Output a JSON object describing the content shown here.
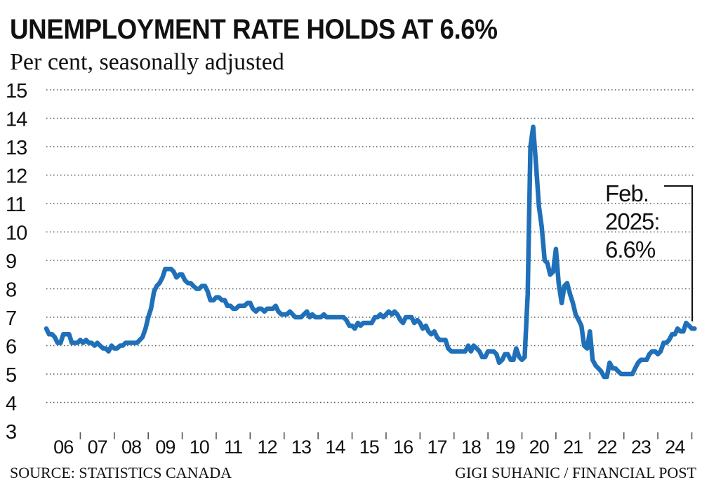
{
  "title": "UNEMPLOYMENT RATE HOLDS AT 6.6%",
  "subtitle": "Per cent, seasonally adjusted",
  "source": "SOURCE: STATISTICS CANADA",
  "credit": "GIGI SUHANIC / FINANCIAL POST",
  "annotation": {
    "line1": "Feb.",
    "line2": "2025:",
    "line3": "6.6%"
  },
  "colors": {
    "line": "#1f70b8",
    "grid": "#555555",
    "text": "#111111"
  },
  "chart_data": {
    "type": "line",
    "title": "UNEMPLOYMENT RATE HOLDS AT 6.6%",
    "subtitle": "Per cent, seasonally adjusted",
    "ylim": [
      3,
      15
    ],
    "yticks": [
      3,
      4,
      5,
      6,
      7,
      8,
      9,
      10,
      11,
      12,
      13,
      14,
      15
    ],
    "xlim": [
      2006.0,
      2025.3
    ],
    "xtick_labels": [
      "06",
      "07",
      "08",
      "09",
      "10",
      "11",
      "12",
      "13",
      "14",
      "15",
      "16",
      "17",
      "18",
      "19",
      "20",
      "21",
      "22",
      "23",
      "24"
    ],
    "grid": "horizontal dotted",
    "annotation": "Feb. 2025: 6.6%",
    "series": [
      {
        "values": [
          [
            2006.0,
            6.6
          ],
          [
            2006.08,
            6.4
          ],
          [
            2006.17,
            6.4
          ],
          [
            2006.25,
            6.3
          ],
          [
            2006.33,
            6.1
          ],
          [
            2006.42,
            6.1
          ],
          [
            2006.5,
            6.4
          ],
          [
            2006.58,
            6.4
          ],
          [
            2006.67,
            6.4
          ],
          [
            2006.75,
            6.1
          ],
          [
            2006.83,
            6.1
          ],
          [
            2006.92,
            6.1
          ],
          [
            2007.0,
            6.2
          ],
          [
            2007.08,
            6.1
          ],
          [
            2007.17,
            6.2
          ],
          [
            2007.25,
            6.1
          ],
          [
            2007.33,
            6.1
          ],
          [
            2007.42,
            6.0
          ],
          [
            2007.5,
            6.1
          ],
          [
            2007.58,
            6.0
          ],
          [
            2007.67,
            5.9
          ],
          [
            2007.75,
            5.9
          ],
          [
            2007.83,
            5.8
          ],
          [
            2007.92,
            6.0
          ],
          [
            2008.0,
            5.9
          ],
          [
            2008.08,
            5.9
          ],
          [
            2008.17,
            6.0
          ],
          [
            2008.25,
            6.0
          ],
          [
            2008.33,
            6.1
          ],
          [
            2008.42,
            6.1
          ],
          [
            2008.5,
            6.1
          ],
          [
            2008.58,
            6.1
          ],
          [
            2008.67,
            6.1
          ],
          [
            2008.75,
            6.2
          ],
          [
            2008.83,
            6.3
          ],
          [
            2008.92,
            6.6
          ],
          [
            2009.0,
            7.0
          ],
          [
            2009.08,
            7.3
          ],
          [
            2009.17,
            7.9
          ],
          [
            2009.25,
            8.1
          ],
          [
            2009.33,
            8.2
          ],
          [
            2009.42,
            8.4
          ],
          [
            2009.5,
            8.7
          ],
          [
            2009.58,
            8.7
          ],
          [
            2009.67,
            8.7
          ],
          [
            2009.75,
            8.6
          ],
          [
            2009.83,
            8.4
          ],
          [
            2009.92,
            8.5
          ],
          [
            2010.0,
            8.5
          ],
          [
            2010.08,
            8.3
          ],
          [
            2010.17,
            8.2
          ],
          [
            2010.25,
            8.2
          ],
          [
            2010.33,
            8.1
          ],
          [
            2010.42,
            8.0
          ],
          [
            2010.5,
            8.0
          ],
          [
            2010.58,
            8.1
          ],
          [
            2010.67,
            8.1
          ],
          [
            2010.75,
            7.9
          ],
          [
            2010.83,
            7.6
          ],
          [
            2010.92,
            7.6
          ],
          [
            2011.0,
            7.7
          ],
          [
            2011.08,
            7.7
          ],
          [
            2011.17,
            7.6
          ],
          [
            2011.25,
            7.6
          ],
          [
            2011.33,
            7.4
          ],
          [
            2011.42,
            7.4
          ],
          [
            2011.5,
            7.3
          ],
          [
            2011.58,
            7.3
          ],
          [
            2011.67,
            7.4
          ],
          [
            2011.75,
            7.4
          ],
          [
            2011.83,
            7.4
          ],
          [
            2011.92,
            7.5
          ],
          [
            2012.0,
            7.5
          ],
          [
            2012.08,
            7.3
          ],
          [
            2012.17,
            7.2
          ],
          [
            2012.25,
            7.3
          ],
          [
            2012.33,
            7.3
          ],
          [
            2012.42,
            7.2
          ],
          [
            2012.5,
            7.3
          ],
          [
            2012.58,
            7.3
          ],
          [
            2012.67,
            7.3
          ],
          [
            2012.75,
            7.4
          ],
          [
            2012.83,
            7.2
          ],
          [
            2012.92,
            7.1
          ],
          [
            2013.0,
            7.1
          ],
          [
            2013.08,
            7.1
          ],
          [
            2013.17,
            7.2
          ],
          [
            2013.25,
            7.1
          ],
          [
            2013.33,
            7.0
          ],
          [
            2013.42,
            7.0
          ],
          [
            2013.5,
            7.0
          ],
          [
            2013.58,
            7.1
          ],
          [
            2013.67,
            7.2
          ],
          [
            2013.75,
            7.0
          ],
          [
            2013.83,
            7.1
          ],
          [
            2013.92,
            7.0
          ],
          [
            2014.0,
            7.0
          ],
          [
            2014.08,
            7.0
          ],
          [
            2014.17,
            7.1
          ],
          [
            2014.25,
            7.0
          ],
          [
            2014.33,
            7.0
          ],
          [
            2014.42,
            7.0
          ],
          [
            2014.5,
            7.0
          ],
          [
            2014.58,
            7.0
          ],
          [
            2014.67,
            7.0
          ],
          [
            2014.75,
            7.0
          ],
          [
            2014.83,
            6.9
          ],
          [
            2014.92,
            6.7
          ],
          [
            2015.0,
            6.7
          ],
          [
            2015.08,
            6.6
          ],
          [
            2015.17,
            6.8
          ],
          [
            2015.25,
            6.7
          ],
          [
            2015.33,
            6.8
          ],
          [
            2015.42,
            6.8
          ],
          [
            2015.5,
            6.8
          ],
          [
            2015.58,
            6.8
          ],
          [
            2015.67,
            7.0
          ],
          [
            2015.75,
            7.0
          ],
          [
            2015.83,
            7.1
          ],
          [
            2015.92,
            7.0
          ],
          [
            2016.0,
            7.1
          ],
          [
            2016.08,
            7.2
          ],
          [
            2016.17,
            7.1
          ],
          [
            2016.25,
            7.2
          ],
          [
            2016.33,
            7.1
          ],
          [
            2016.42,
            6.9
          ],
          [
            2016.5,
            6.8
          ],
          [
            2016.58,
            7.0
          ],
          [
            2016.67,
            7.0
          ],
          [
            2016.75,
            7.0
          ],
          [
            2016.83,
            6.8
          ],
          [
            2016.92,
            6.9
          ],
          [
            2017.0,
            6.8
          ],
          [
            2017.08,
            6.6
          ],
          [
            2017.17,
            6.7
          ],
          [
            2017.25,
            6.5
          ],
          [
            2017.33,
            6.4
          ],
          [
            2017.42,
            6.5
          ],
          [
            2017.5,
            6.3
          ],
          [
            2017.58,
            6.2
          ],
          [
            2017.67,
            6.2
          ],
          [
            2017.75,
            6.2
          ],
          [
            2017.83,
            5.9
          ],
          [
            2017.92,
            5.8
          ],
          [
            2018.0,
            5.8
          ],
          [
            2018.08,
            5.8
          ],
          [
            2018.17,
            5.8
          ],
          [
            2018.25,
            5.8
          ],
          [
            2018.33,
            5.8
          ],
          [
            2018.42,
            6.0
          ],
          [
            2018.5,
            5.8
          ],
          [
            2018.58,
            6.0
          ],
          [
            2018.67,
            5.9
          ],
          [
            2018.75,
            5.8
          ],
          [
            2018.83,
            5.6
          ],
          [
            2018.92,
            5.6
          ],
          [
            2019.0,
            5.8
          ],
          [
            2019.08,
            5.8
          ],
          [
            2019.17,
            5.8
          ],
          [
            2019.25,
            5.7
          ],
          [
            2019.33,
            5.4
          ],
          [
            2019.42,
            5.5
          ],
          [
            2019.5,
            5.7
          ],
          [
            2019.58,
            5.7
          ],
          [
            2019.67,
            5.5
          ],
          [
            2019.75,
            5.5
          ],
          [
            2019.83,
            5.9
          ],
          [
            2019.92,
            5.6
          ],
          [
            2020.0,
            5.5
          ],
          [
            2020.08,
            5.6
          ],
          [
            2020.17,
            7.8
          ],
          [
            2020.25,
            13.0
          ],
          [
            2020.33,
            13.7
          ],
          [
            2020.42,
            12.3
          ],
          [
            2020.5,
            10.9
          ],
          [
            2020.58,
            10.2
          ],
          [
            2020.67,
            9.0
          ],
          [
            2020.75,
            8.9
          ],
          [
            2020.83,
            8.5
          ],
          [
            2020.92,
            8.6
          ],
          [
            2021.0,
            9.4
          ],
          [
            2021.08,
            8.2
          ],
          [
            2021.17,
            7.5
          ],
          [
            2021.25,
            8.1
          ],
          [
            2021.33,
            8.2
          ],
          [
            2021.42,
            7.8
          ],
          [
            2021.5,
            7.5
          ],
          [
            2021.58,
            7.1
          ],
          [
            2021.67,
            6.9
          ],
          [
            2021.75,
            6.7
          ],
          [
            2021.83,
            6.0
          ],
          [
            2021.92,
            5.9
          ],
          [
            2022.0,
            6.5
          ],
          [
            2022.08,
            5.5
          ],
          [
            2022.17,
            5.3
          ],
          [
            2022.25,
            5.2
          ],
          [
            2022.33,
            5.1
          ],
          [
            2022.42,
            4.9
          ],
          [
            2022.5,
            4.9
          ],
          [
            2022.58,
            5.4
          ],
          [
            2022.67,
            5.2
          ],
          [
            2022.75,
            5.2
          ],
          [
            2022.83,
            5.1
          ],
          [
            2022.92,
            5.0
          ],
          [
            2023.0,
            5.0
          ],
          [
            2023.08,
            5.0
          ],
          [
            2023.17,
            5.0
          ],
          [
            2023.25,
            5.0
          ],
          [
            2023.33,
            5.2
          ],
          [
            2023.42,
            5.4
          ],
          [
            2023.5,
            5.5
          ],
          [
            2023.58,
            5.5
          ],
          [
            2023.67,
            5.5
          ],
          [
            2023.75,
            5.7
          ],
          [
            2023.83,
            5.8
          ],
          [
            2023.92,
            5.8
          ],
          [
            2024.0,
            5.7
          ],
          [
            2024.08,
            5.8
          ],
          [
            2024.17,
            6.1
          ],
          [
            2024.25,
            6.1
          ],
          [
            2024.33,
            6.2
          ],
          [
            2024.42,
            6.4
          ],
          [
            2024.5,
            6.4
          ],
          [
            2024.58,
            6.6
          ],
          [
            2024.67,
            6.5
          ],
          [
            2024.75,
            6.5
          ],
          [
            2024.83,
            6.8
          ],
          [
            2024.92,
            6.7
          ],
          [
            2025.0,
            6.6
          ],
          [
            2025.08,
            6.6
          ]
        ]
      }
    ]
  }
}
